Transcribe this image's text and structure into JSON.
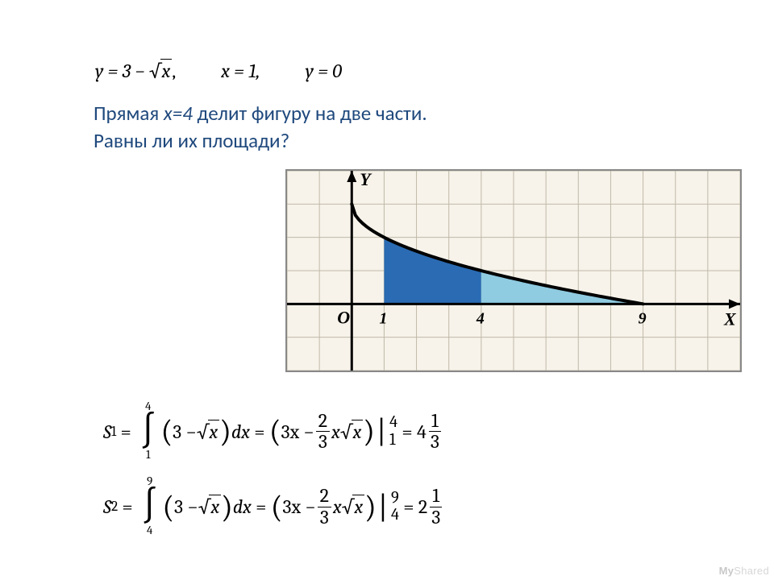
{
  "equations": {
    "eq1_before": "y = 3 − ",
    "eq1_rad": "x",
    "eq2": "x = 1,",
    "eq3": "y = 0",
    "comma": ","
  },
  "problem": {
    "line1_a": "Прямая ",
    "line1_em": "x=4",
    "line1_b": " делит фигуру на две части.",
    "line2": "Равны ли их площади?"
  },
  "chart": {
    "type": "area",
    "background_color": "#f7f3ea",
    "grid_color": "#bfb9a8",
    "axis_color": "#000000",
    "curve_color": "#000000",
    "curve_width": 4,
    "region1_fill": "#2a6bb3",
    "region2_fill": "#8fcbe1",
    "xlim": [
      -2,
      12
    ],
    "ylim": [
      -2,
      4
    ],
    "origin_label": "O",
    "x_label": "X",
    "y_label": "Y",
    "ticks": [
      {
        "x": 1,
        "label": "1"
      },
      {
        "x": 4,
        "label": "4"
      },
      {
        "x": 9,
        "label": "9"
      }
    ],
    "tick_fontsize": 20,
    "label_fontsize": 22,
    "curve_x_start": 0,
    "curve_x_end": 9,
    "region1_x": [
      1,
      4
    ],
    "region2_x": [
      4,
      9
    ]
  },
  "integrals": {
    "S1": {
      "name": "S",
      "sub": "1",
      "lower": "1",
      "upper": "4",
      "integrand_before": "3 − ",
      "integrand_rad": "x",
      "dx": "dx",
      "antideriv_a": "3x − ",
      "antideriv_frac_num": "2",
      "antideriv_frac_den": "3",
      "antideriv_b": "x",
      "antideriv_rad": "x",
      "eval_upper": "4",
      "eval_lower": "1",
      "result_whole": "4",
      "result_frac_num": "1",
      "result_frac_den": "3"
    },
    "S2": {
      "name": "S",
      "sub": "2",
      "lower": "4",
      "upper": "9",
      "integrand_before": "3 − ",
      "integrand_rad": "x",
      "dx": "dx",
      "antideriv_a": "3x − ",
      "antideriv_frac_num": "2",
      "antideriv_frac_den": "3",
      "antideriv_b": "x",
      "antideriv_rad": "x",
      "eval_upper": "9",
      "eval_lower": "4",
      "result_whole": "2",
      "result_frac_num": "1",
      "result_frac_den": "3"
    }
  },
  "watermark": {
    "prefix": "My",
    "rest": "Shared"
  },
  "colors": {
    "text_heading": "#1f497d",
    "text_body": "#000000",
    "watermark": "#d7d7d7"
  }
}
